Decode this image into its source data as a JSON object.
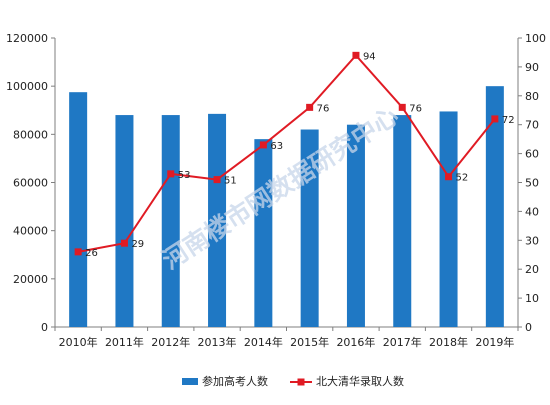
{
  "chart_data": {
    "type": "bar",
    "categories": [
      "2010年",
      "2011年",
      "2012年",
      "2013年",
      "2014年",
      "2015年",
      "2016年",
      "2017年",
      "2018年",
      "2019年"
    ],
    "series": [
      {
        "name": "参加高考人数",
        "type": "bar",
        "axis": "left",
        "values": [
          97500,
          88000,
          88000,
          88500,
          78000,
          82000,
          84000,
          88000,
          89500,
          100000
        ]
      },
      {
        "name": "北大清华录取人数",
        "type": "line",
        "axis": "right",
        "values": [
          26,
          29,
          53,
          51,
          63,
          76,
          94,
          76,
          52,
          72
        ]
      }
    ],
    "y_left": {
      "min": 0,
      "max": 120000,
      "ticks": [
        0,
        20000,
        40000,
        60000,
        80000,
        100000,
        120000
      ]
    },
    "y_right": {
      "min": 0,
      "max": 100,
      "ticks": [
        0,
        10,
        20,
        30,
        40,
        50,
        60,
        70,
        80,
        90,
        100
      ]
    },
    "grid": false,
    "legend_position": "bottom",
    "watermark": "河南楼市网数据研究中心",
    "colors": {
      "bar": "#1f78c4",
      "line": "#e01b24",
      "axis": "#7f7f7f"
    }
  }
}
